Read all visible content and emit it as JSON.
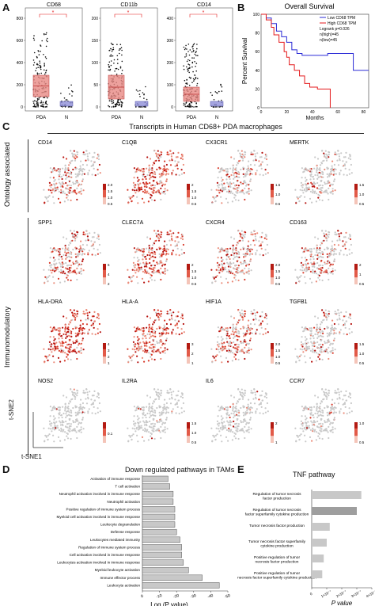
{
  "panels": {
    "A": "A",
    "B": "B",
    "C": "C",
    "D": "D",
    "E": "E"
  },
  "panelA": {
    "plots": [
      {
        "title": "CD68",
        "star": "*",
        "yticks": [
          "0",
          "200",
          "400",
          "600",
          "800"
        ],
        "xticks": [
          "PDA",
          "N"
        ]
      },
      {
        "title": "CD11b",
        "star": "*",
        "yticks": [
          "0",
          "50",
          "100",
          "150",
          "200"
        ],
        "xticks": [
          "PDA",
          "N"
        ]
      },
      {
        "title": "CD14",
        "star": "*",
        "yticks": [
          "0",
          "100",
          "200",
          "300",
          "400"
        ],
        "xticks": [
          "PDA",
          "N"
        ]
      }
    ],
    "colors": {
      "tumor_box": "#e88a85",
      "normal_box": "#8f8fd8",
      "star": "#e41a1c"
    }
  },
  "panelB": {
    "title": "Overall Survival",
    "ylabel": "Percent Survival",
    "xlabel": "Months",
    "yticks": [
      "0",
      "20",
      "40",
      "60",
      "80",
      "100"
    ],
    "xticks": [
      "0",
      "20",
      "40",
      "60",
      "80"
    ],
    "legend": [
      "Low CD68 TPM",
      "High CD68 TPM",
      "Logrank p=0.026",
      "n(high)=45",
      "n(low)=45"
    ],
    "colors": {
      "low": "#2b2bd6",
      "high": "#e41a1c"
    }
  },
  "panelC": {
    "title": "Transcripts in Human CD68+ PDA macrophages",
    "row_labels": [
      "Ontology associated",
      "Immunomodulatory"
    ],
    "axis_y": "t-SNE2",
    "axis_x": "t-SNE1",
    "genes": [
      {
        "name": "CD14",
        "scale": [
          "2.0",
          "1.5",
          "1.0",
          "0.5"
        ],
        "density": 0.35
      },
      {
        "name": "C1QB",
        "scale": [
          "2",
          "1.5",
          "1.0",
          "0.5"
        ],
        "density": 0.85
      },
      {
        "name": "CX3CR1",
        "scale": [
          "1.5",
          "1.0",
          "0.5"
        ],
        "density": 0.3
      },
      {
        "name": "MERTK",
        "scale": [
          "1.5",
          "1.0",
          "0.5"
        ],
        "density": 0.15
      },
      {
        "name": "SPP1",
        "scale": [
          "6",
          "4",
          "2"
        ],
        "density": 0.45
      },
      {
        "name": "CLEC7A",
        "scale": [
          "2",
          "1.5",
          "1.0",
          "0.5"
        ],
        "density": 0.75
      },
      {
        "name": "CXCR4",
        "scale": [
          "2.0",
          "1.5",
          "1.0",
          "0.5"
        ],
        "density": 0.45
      },
      {
        "name": "CD163",
        "scale": [
          "2",
          "1",
          "0.5"
        ],
        "density": 0.3
      },
      {
        "name": "HLA-DRA",
        "scale": [
          "4",
          "3",
          "2",
          "1"
        ],
        "density": 0.95
      },
      {
        "name": "HLA-A",
        "scale": [
          "3",
          "2",
          "1"
        ],
        "density": 0.85
      },
      {
        "name": "HIF1A",
        "scale": [
          "2.0",
          "1.5",
          "1.0",
          "0.5"
        ],
        "density": 0.55
      },
      {
        "name": "TGFB1",
        "scale": [
          "1.5",
          "1.0",
          "0.5"
        ],
        "density": 0.2
      },
      {
        "name": "NOS2",
        "scale": [
          "0.1"
        ],
        "density": 0.02
      },
      {
        "name": "IL2RA",
        "scale": [
          "1.5",
          "1.0",
          "0.5"
        ],
        "density": 0.05
      },
      {
        "name": "IL6",
        "scale": [
          "2",
          "1"
        ],
        "density": 0.05
      },
      {
        "name": "CCR7",
        "scale": [
          "1.0",
          "0.5"
        ],
        "density": 0.05
      }
    ]
  },
  "panelD": {
    "title": "Down regulated pathways in TAMs",
    "xlabel": "Log (P value)",
    "xticks": [
      "0",
      "-10",
      "-20",
      "-30",
      "-40",
      "-50"
    ],
    "bar_color": "#c8c8c8"
  },
  "panelE": {
    "title": "TNF pathway",
    "xlabel": "P value",
    "xticks": [
      "0",
      "1×10⁻⁷",
      "2×10⁻⁷",
      "3×10⁻⁷",
      "4×10⁻⁷"
    ]
  },
  "chart_data": [
    {
      "type": "bar",
      "title": "Down regulated pathways in TAMs",
      "xlabel": "Log (P value)",
      "xlim": [
        0,
        -50
      ],
      "categories": [
        "Activation of immune response",
        "T cell activation",
        "Neutrophil activation involved in immune response",
        "Neutrophil activation",
        "Positive regulation of immune system process",
        "Myeloid cell activation involved in immune response",
        "Leukocyte degranulation",
        "Defense response",
        "Leukocytes mediated immunity",
        "Regulation of immune system process",
        "Cell activation involved in immune response",
        "Leukocytes activation involved in immune response",
        "Myeloid leukocyte activation",
        "Immune effector process",
        "Leukocyte activation"
      ],
      "values": [
        -15,
        -16,
        -18,
        -18,
        -19,
        -19,
        -19,
        -20,
        -22,
        -23,
        -23,
        -24,
        -27,
        -35,
        -45
      ]
    },
    {
      "type": "bar",
      "title": "TNF pathway",
      "xlabel": "P value",
      "xlim": [
        0,
        4e-07
      ],
      "categories": [
        "Regulation of tumor necrosis factor production",
        "Regulation of tumor necrosis factor superfamily cytokine production",
        "Tumor necrosis factor production",
        "Tumor necrosis factor superfamily cytokine production",
        "Positive regulation of tumor necrosis factor production",
        "Positive regulation of tumor necrosis factor superfamily cytokine production"
      ],
      "values": [
        3.3e-07,
        3e-07,
        1.2e-07,
        1e-07,
        8e-08,
        7e-08
      ]
    }
  ]
}
